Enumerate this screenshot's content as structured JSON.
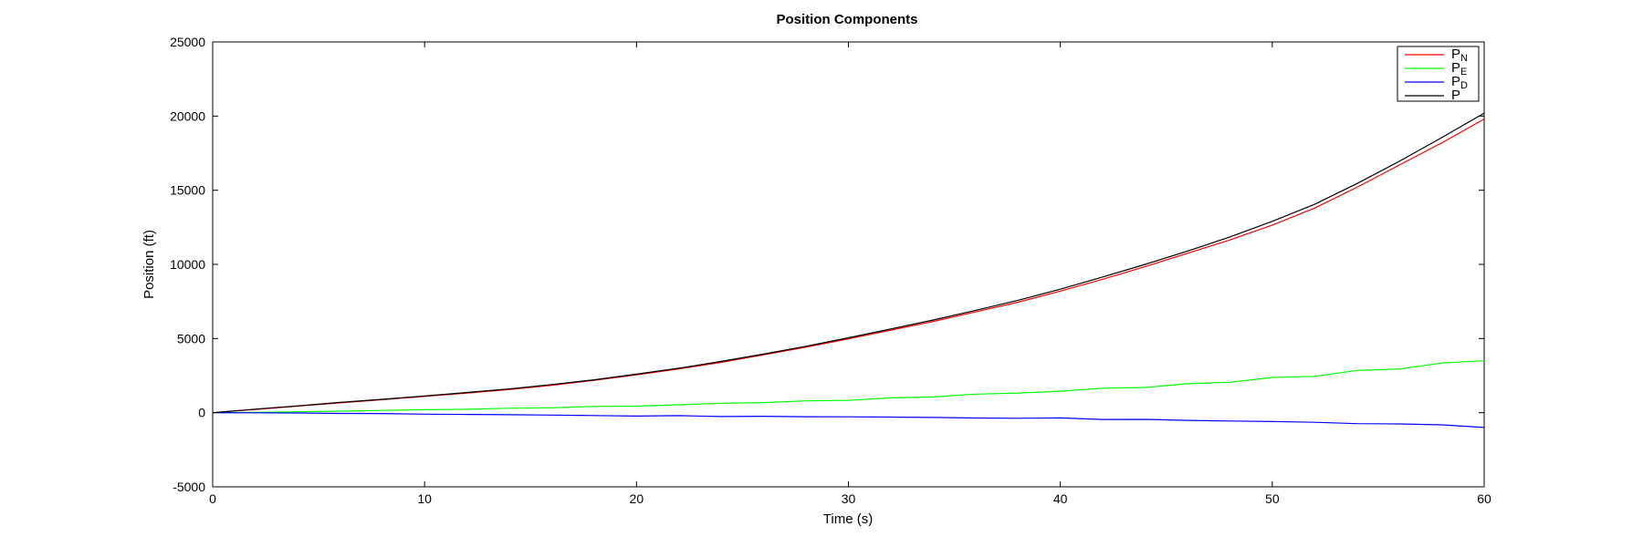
{
  "chart_data": {
    "type": "line",
    "title": "Position Components",
    "xlabel": "Time (s)",
    "ylabel": "Position (ft)",
    "xlim": [
      0,
      60
    ],
    "ylim": [
      -5000,
      25000
    ],
    "xticks": [
      0,
      10,
      20,
      30,
      40,
      50,
      60
    ],
    "yticks": [
      -5000,
      0,
      5000,
      10000,
      15000,
      20000,
      25000
    ],
    "grid": false,
    "legend_position": "top-right",
    "x": [
      0,
      2,
      4,
      6,
      8,
      10,
      12,
      14,
      16,
      18,
      20,
      22,
      24,
      26,
      28,
      30,
      32,
      34,
      36,
      38,
      40,
      42,
      44,
      46,
      48,
      50,
      52,
      54,
      56,
      58,
      60
    ],
    "series": [
      {
        "name": "P",
        "subscript": "N",
        "color": "#ff0000",
        "values": [
          0,
          220,
          440,
          660,
          880,
          1100,
          1320,
          1560,
          1850,
          2180,
          2550,
          2950,
          3400,
          3900,
          4420,
          4980,
          5560,
          6150,
          6800,
          7450,
          8200,
          9000,
          9850,
          10750,
          11650,
          12650,
          13800,
          15200,
          16700,
          18200,
          19800
        ]
      },
      {
        "name": "P",
        "subscript": "E",
        "color": "#00ff00",
        "values": [
          0,
          20,
          60,
          100,
          150,
          200,
          230,
          300,
          330,
          420,
          440,
          530,
          640,
          680,
          800,
          830,
          1000,
          1060,
          1250,
          1320,
          1450,
          1650,
          1700,
          1950,
          2050,
          2380,
          2450,
          2850,
          2950,
          3350,
          3500
        ]
      },
      {
        "name": "P",
        "subscript": "D",
        "color": "#0000ff",
        "values": [
          0,
          -10,
          -20,
          -50,
          -60,
          -100,
          -120,
          -140,
          -160,
          -190,
          -230,
          -200,
          -260,
          -240,
          -270,
          -280,
          -300,
          -320,
          -360,
          -380,
          -350,
          -460,
          -450,
          -520,
          -560,
          -600,
          -650,
          -740,
          -760,
          -820,
          -1000
        ]
      },
      {
        "name": "P",
        "subscript": "",
        "color": "#000000",
        "values": [
          0,
          240,
          460,
          690,
          900,
          1130,
          1360,
          1600,
          1900,
          2220,
          2600,
          3000,
          3460,
          3950,
          4480,
          5050,
          5640,
          6250,
          6900,
          7580,
          8330,
          9150,
          10000,
          10900,
          11850,
          12900,
          14050,
          15450,
          16950,
          18550,
          20200
        ]
      }
    ]
  }
}
